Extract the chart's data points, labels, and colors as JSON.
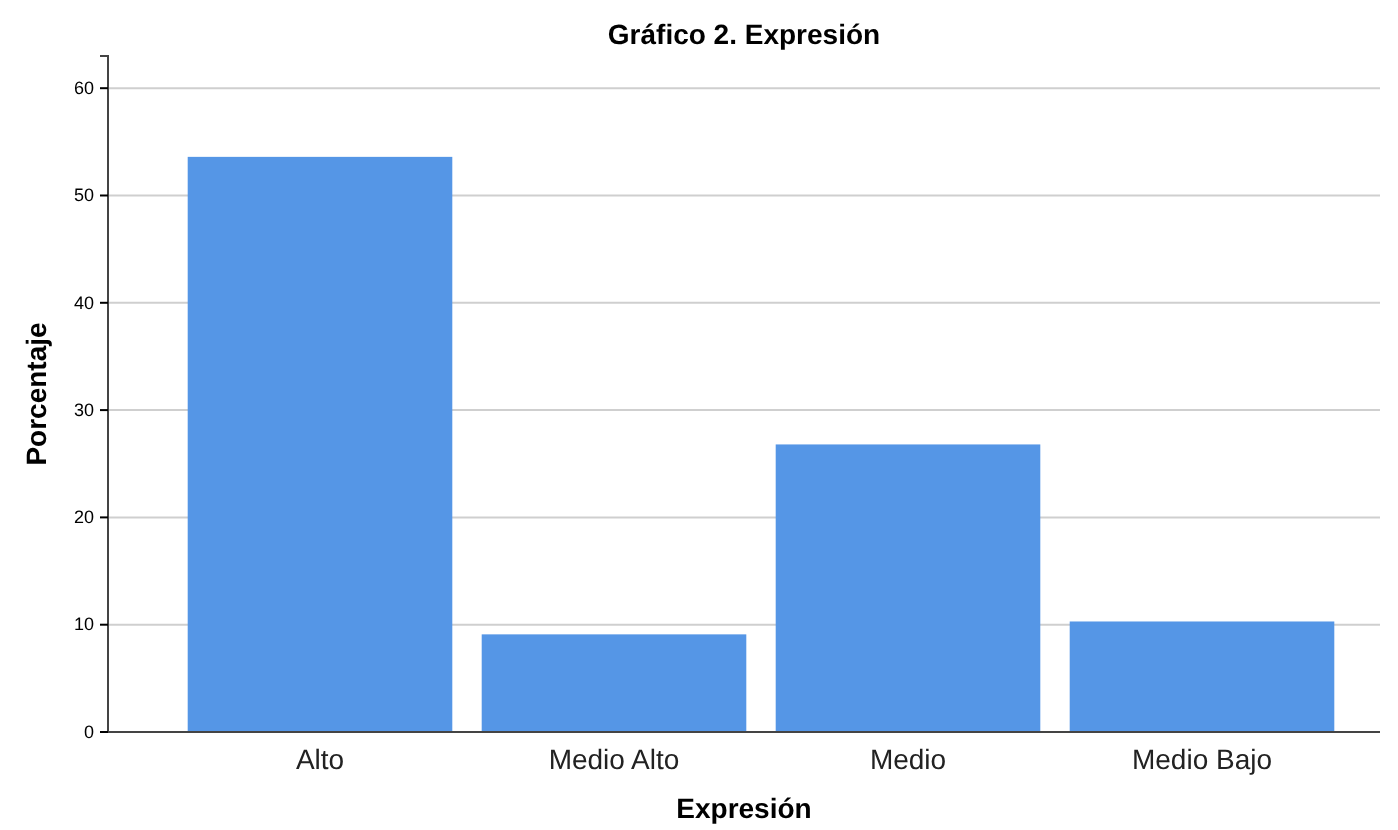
{
  "chart_data": {
    "type": "bar",
    "title": "Gráfico 2. Expresión",
    "xlabel": "Expresión",
    "ylabel": "Porcentaje",
    "categories": [
      "Alto",
      "Medio Alto",
      "Medio",
      "Medio Bajo"
    ],
    "values": [
      53.6,
      9.1,
      26.8,
      10.3
    ],
    "color": "#5596e6",
    "ylim": [
      0,
      63
    ],
    "yticks": [
      0,
      10,
      20,
      30,
      40,
      50,
      60
    ],
    "grid": "y"
  }
}
